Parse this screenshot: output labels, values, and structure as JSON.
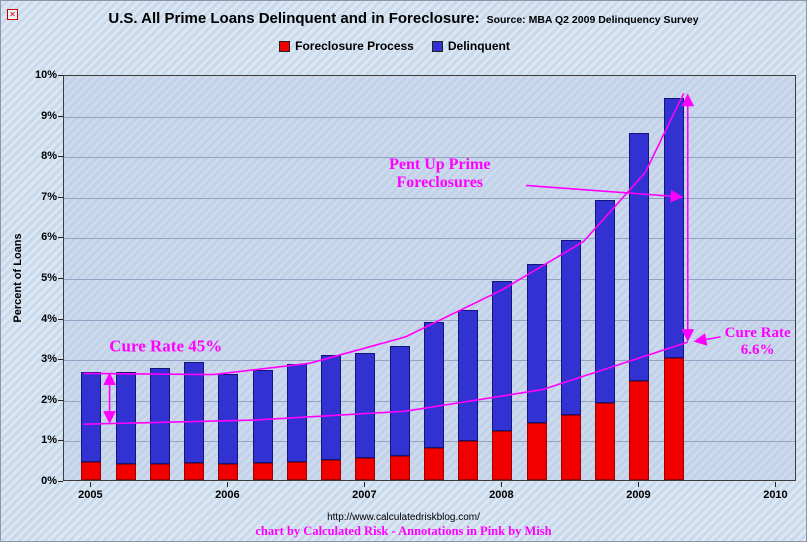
{
  "title": {
    "main": "U.S. All Prime Loans Delinquent and in Foreclosure:",
    "source": "Source: MBA Q2 2009 Delinquency Survey"
  },
  "footer": {
    "url": "http://www.calculatedriskblog.com/",
    "credit": "chart by Calculated Risk - Annotations in Pink by Mish"
  },
  "chart_data": {
    "type": "bar",
    "stacked": true,
    "title": "U.S. All Prime Loans Delinquent and in Foreclosure",
    "ylabel": "Percent of Loans",
    "ylim": [
      0,
      10
    ],
    "ytick_step": 1,
    "ytick_suffix": "%",
    "xlim": [
      2004.8,
      2010.15
    ],
    "xticks": [
      2005,
      2006,
      2007,
      2008,
      2009,
      2010
    ],
    "x": [
      2005.0,
      2005.25,
      2005.5,
      2005.75,
      2006.0,
      2006.25,
      2006.5,
      2006.75,
      2007.0,
      2007.25,
      2007.5,
      2007.75,
      2008.0,
      2008.25,
      2008.5,
      2008.75,
      2009.0,
      2009.25
    ],
    "series": [
      {
        "name": "Foreclosure Process",
        "color": "#f20000",
        "values": [
          0.45,
          0.4,
          0.4,
          0.42,
          0.4,
          0.42,
          0.45,
          0.5,
          0.55,
          0.6,
          0.78,
          0.95,
          1.2,
          1.4,
          1.6,
          1.9,
          2.45,
          3.0
        ]
      },
      {
        "name": "Delinquent",
        "color": "#3232d2",
        "values": [
          2.2,
          2.25,
          2.35,
          2.48,
          2.2,
          2.28,
          2.4,
          2.58,
          2.57,
          2.7,
          3.12,
          3.23,
          3.7,
          3.92,
          4.3,
          5.0,
          6.1,
          6.4
        ]
      }
    ],
    "annotation_color": "#ff00ff",
    "annotations": {
      "cure_left": {
        "text": "Cure Rate 45%",
        "x": 2005.55,
        "y": 3.32
      },
      "pent_up": {
        "line1": "Pent Up Prime",
        "line2": "Foreclosures",
        "x": 2007.55,
        "y": 7.55
      },
      "cure_right": {
        "line1": "Cure Rate",
        "line2": "6.6%",
        "x": 2009.87,
        "y": 3.42
      },
      "lines": [
        {
          "points": [
            [
              2004.95,
              2.65
            ],
            [
              2005.9,
              2.62
            ],
            [
              2006.6,
              2.9
            ],
            [
              2007.3,
              3.55
            ],
            [
              2008.0,
              4.7
            ],
            [
              2008.6,
              5.9
            ],
            [
              2009.05,
              7.6
            ],
            [
              2009.33,
              9.55
            ]
          ]
        },
        {
          "points": [
            [
              2004.95,
              1.4
            ],
            [
              2006.2,
              1.5
            ],
            [
              2007.3,
              1.72
            ],
            [
              2008.3,
              2.25
            ],
            [
              2009.36,
              3.42
            ]
          ]
        }
      ],
      "double_arrows": [
        {
          "x": 2005.14,
          "y1": 1.5,
          "y2": 2.58
        },
        {
          "x": 2009.36,
          "y1": 3.52,
          "y2": 9.45
        }
      ],
      "arrows": [
        {
          "from": [
            2008.18,
            7.28
          ],
          "to": [
            2009.3,
            7.0
          ]
        },
        {
          "from": [
            2009.6,
            3.55
          ],
          "to": [
            2009.43,
            3.45
          ]
        }
      ]
    }
  }
}
